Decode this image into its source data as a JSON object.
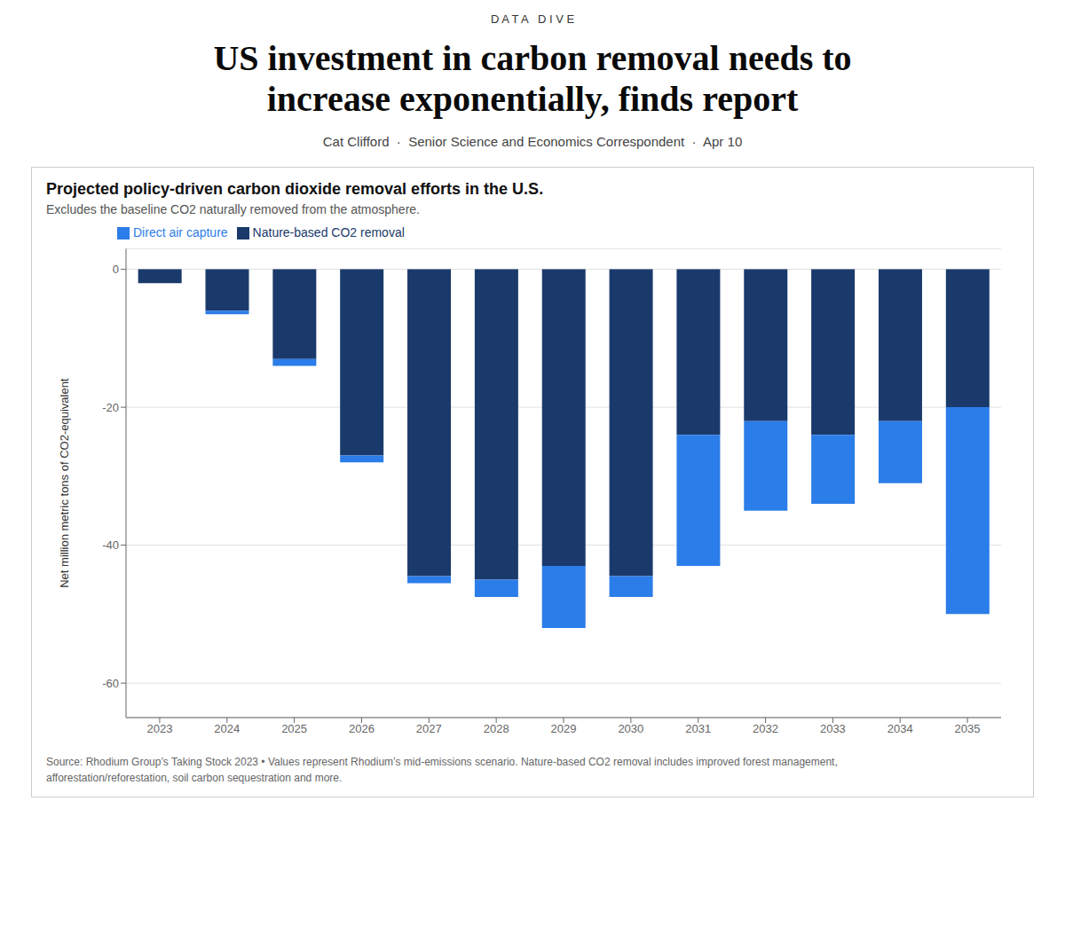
{
  "chart_data": {
    "type": "bar",
    "title": "Projected policy-driven carbon dioxide removal efforts in the U.S.",
    "subtitle": "Excludes the baseline CO2 naturally removed from the atmosphere.",
    "y_label": "Net million metric tons of CO2-equivalent",
    "annotations": [
      "D A T A   D I V E",
      "US investment in carbon removal needs to",
      "increase exponentially, finds report",
      "Cat Clifford  ·  Senior Science and Economics Correspondent  ·  Apr 10",
      "Source: Rhodium Group’s Taking Stock 2023 • Values represent Rhodium’s mid-emissions scenario. Nature-based CO2 removal includes improved forest management,\nafforestation/reforestation, soil carbon sequestration and more."
    ],
    "categories": [
      "2023",
      "2024",
      "2025",
      "2026",
      "2027",
      "2028",
      "2029",
      "2030",
      "2031",
      "2032",
      "2033",
      "2034",
      "2035"
    ],
    "series": [
      {
        "name": "Nature-based CO2 removal",
        "color": "#1a3a6b",
        "values": [
          -2.0,
          -6.0,
          -13.0,
          -27.0,
          -44.5,
          -45.0,
          -43.0,
          -44.5,
          -24.0,
          -22.0,
          -24.0,
          -22.0,
          -20.0
        ]
      },
      {
        "name": "Direct air capture",
        "color": "#2b7de9",
        "values": [
          0.0,
          -0.5,
          -1.0,
          -1.0,
          -1.0,
          -2.5,
          -9.0,
          -3.0,
          -19.0,
          -13.0,
          -10.0,
          -9.0,
          -30.0
        ]
      }
    ],
    "stacked": true,
    "ylim": [
      -65,
      3
    ],
    "yticks": [
      0,
      -20,
      -40,
      -60
    ],
    "grid": true,
    "legend": "upper left"
  }
}
